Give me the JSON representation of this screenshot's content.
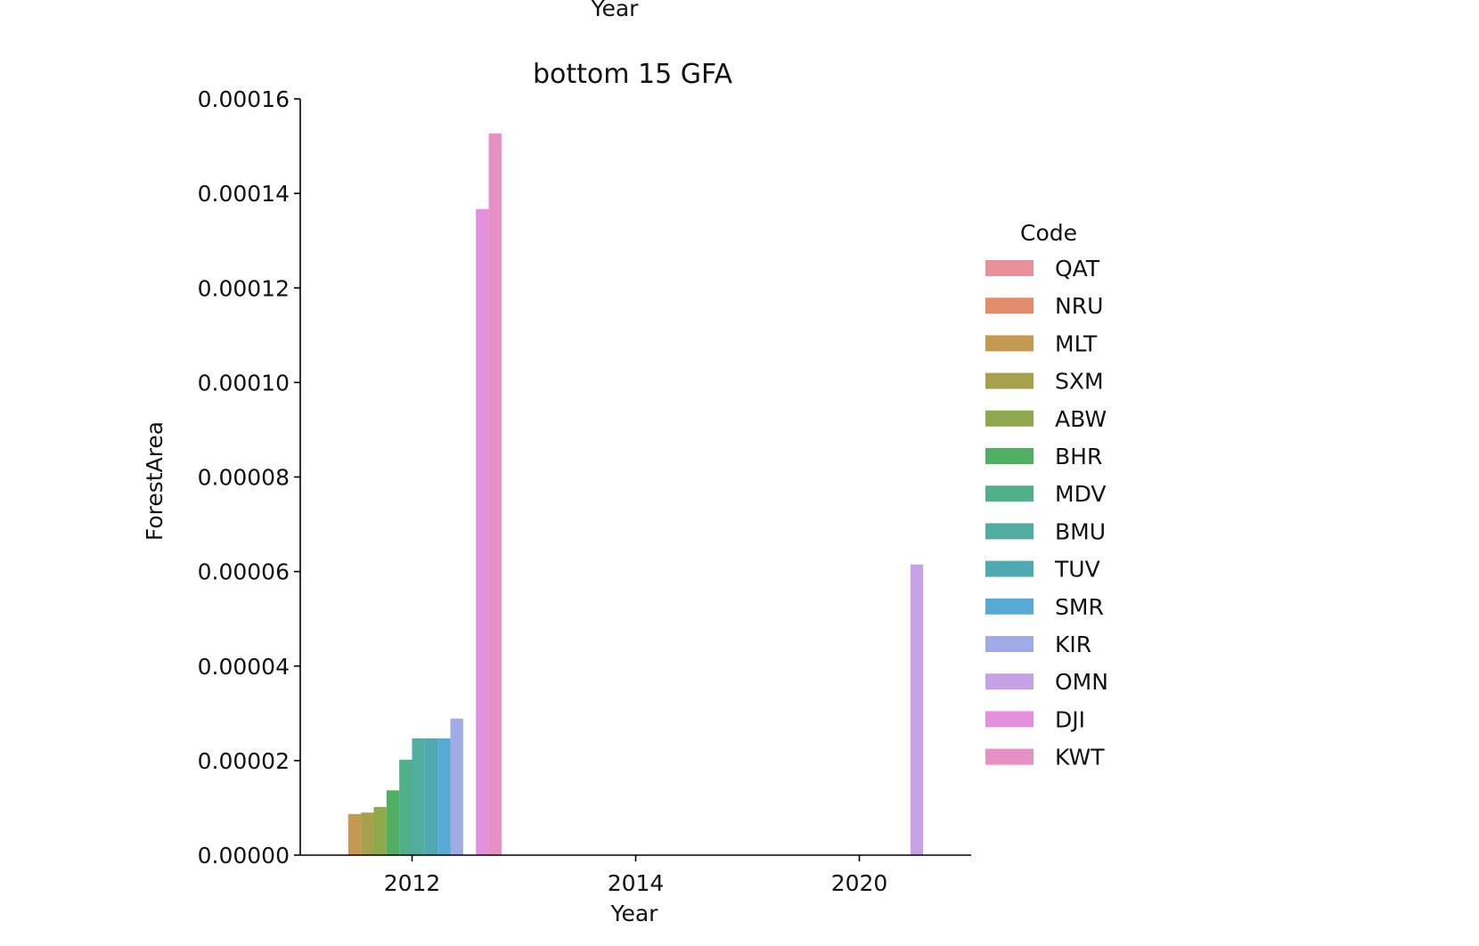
{
  "chart_data": {
    "type": "bar",
    "title": "bottom 15 GFA",
    "top_cut_label": "Year",
    "xlabel": "Year",
    "ylabel": "ForestArea",
    "categories": [
      "2012",
      "2014",
      "2020"
    ],
    "ylim": [
      0,
      0.00016
    ],
    "yticks": [
      "0.00000",
      "0.00002",
      "0.00004",
      "0.00006",
      "0.00008",
      "0.00010",
      "0.00012",
      "0.00014",
      "0.00016"
    ],
    "legend_title": "Code",
    "legend_position": "right",
    "series": [
      {
        "name": "QAT",
        "color": "#e8919a",
        "values": [
          0,
          0,
          0
        ]
      },
      {
        "name": "NRU",
        "color": "#e38c6b",
        "values": [
          0,
          0,
          0
        ]
      },
      {
        "name": "MLT",
        "color": "#c49a52",
        "values": [
          8.7e-06,
          0,
          0
        ]
      },
      {
        "name": "SXM",
        "color": "#a7a04c",
        "values": [
          9e-06,
          0,
          0
        ]
      },
      {
        "name": "ABW",
        "color": "#8ea84c",
        "values": [
          1.02e-05,
          0,
          0
        ]
      },
      {
        "name": "BHR",
        "color": "#4daf5f",
        "values": [
          1.37e-05,
          0,
          0
        ]
      },
      {
        "name": "MDV",
        "color": "#4fb08a",
        "values": [
          2.02e-05,
          0,
          0
        ]
      },
      {
        "name": "BMU",
        "color": "#50ada0",
        "values": [
          2.47e-05,
          0,
          0
        ]
      },
      {
        "name": "TUV",
        "color": "#4ea9b3",
        "values": [
          2.47e-05,
          0,
          0
        ]
      },
      {
        "name": "SMR",
        "color": "#57a9d6",
        "values": [
          2.47e-05,
          0,
          0
        ]
      },
      {
        "name": "KIR",
        "color": "#a0ace6",
        "values": [
          2.89e-05,
          0,
          0
        ]
      },
      {
        "name": "OMN",
        "color": "#c5a1e6",
        "values": [
          0,
          0,
          6.15e-05
        ]
      },
      {
        "name": "DJI",
        "color": "#e48fde",
        "values": [
          0.0001367,
          0,
          0
        ]
      },
      {
        "name": "KWT",
        "color": "#e691c4",
        "values": [
          0.0001527,
          0,
          0
        ]
      }
    ]
  }
}
